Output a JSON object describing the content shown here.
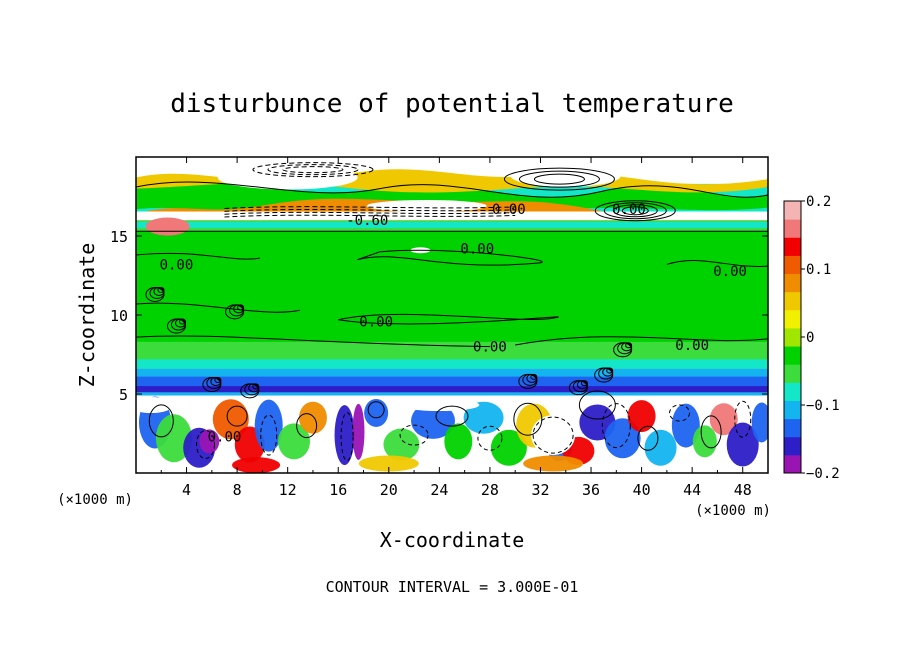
{
  "chart_data": {
    "type": "heatmap",
    "title": "disturbunce of potential temperature",
    "xlabel": "X-coordinate",
    "ylabel": "Z-coordinate",
    "x_unit": "(×1000 m)",
    "y_unit": "(×1000 m)",
    "xlim": [
      0,
      50
    ],
    "ylim": [
      0,
      20
    ],
    "x_ticks": [
      4,
      8,
      12,
      16,
      20,
      24,
      28,
      32,
      36,
      40,
      44,
      48
    ],
    "y_ticks": [
      5,
      10,
      15
    ],
    "colorbar": {
      "range": [
        -0.2,
        0.2
      ],
      "ticks": [
        {
          "value": 0.2,
          "label": "0.2"
        },
        {
          "value": 0.1,
          "label": "0.1"
        },
        {
          "value": 0,
          "label": "0"
        },
        {
          "value": -0.1,
          "label": "-0.1"
        },
        {
          "value": -0.2,
          "label": "-0.2"
        }
      ]
    },
    "contour_labels": [
      {
        "text": "-0.60",
        "x": 18.3,
        "z": 16.0
      },
      {
        "text": "0.00",
        "x": 29.5,
        "z": 16.7
      },
      {
        "text": "0.00",
        "x": 39.0,
        "z": 16.7
      },
      {
        "text": "0.00",
        "x": 27.0,
        "z": 14.2
      },
      {
        "text": "0.00",
        "x": 3.2,
        "z": 13.2
      },
      {
        "text": "0.00",
        "x": 47.0,
        "z": 12.8
      },
      {
        "text": "0.00",
        "x": 19.0,
        "z": 9.6
      },
      {
        "text": "0.00",
        "x": 28.0,
        "z": 8.0
      },
      {
        "text": "0.00",
        "x": 44.0,
        "z": 8.1
      },
      {
        "text": "0.00",
        "x": 7.0,
        "z": 2.3
      }
    ],
    "footer": "CONTOUR INTERVAL = 3.000E-01",
    "colors": {
      "scale": [
        "#9a14b4",
        "#2d1ec8",
        "#1e64f0",
        "#14b4f0",
        "#14e6c8",
        "#3cdc3c",
        "#00d200",
        "#a0e600",
        "#f0f000",
        "#f0c800",
        "#f08c00",
        "#f05a00",
        "#f00000",
        "#f07878",
        "#f4b4b4"
      ],
      "background": "#ffffff"
    }
  }
}
